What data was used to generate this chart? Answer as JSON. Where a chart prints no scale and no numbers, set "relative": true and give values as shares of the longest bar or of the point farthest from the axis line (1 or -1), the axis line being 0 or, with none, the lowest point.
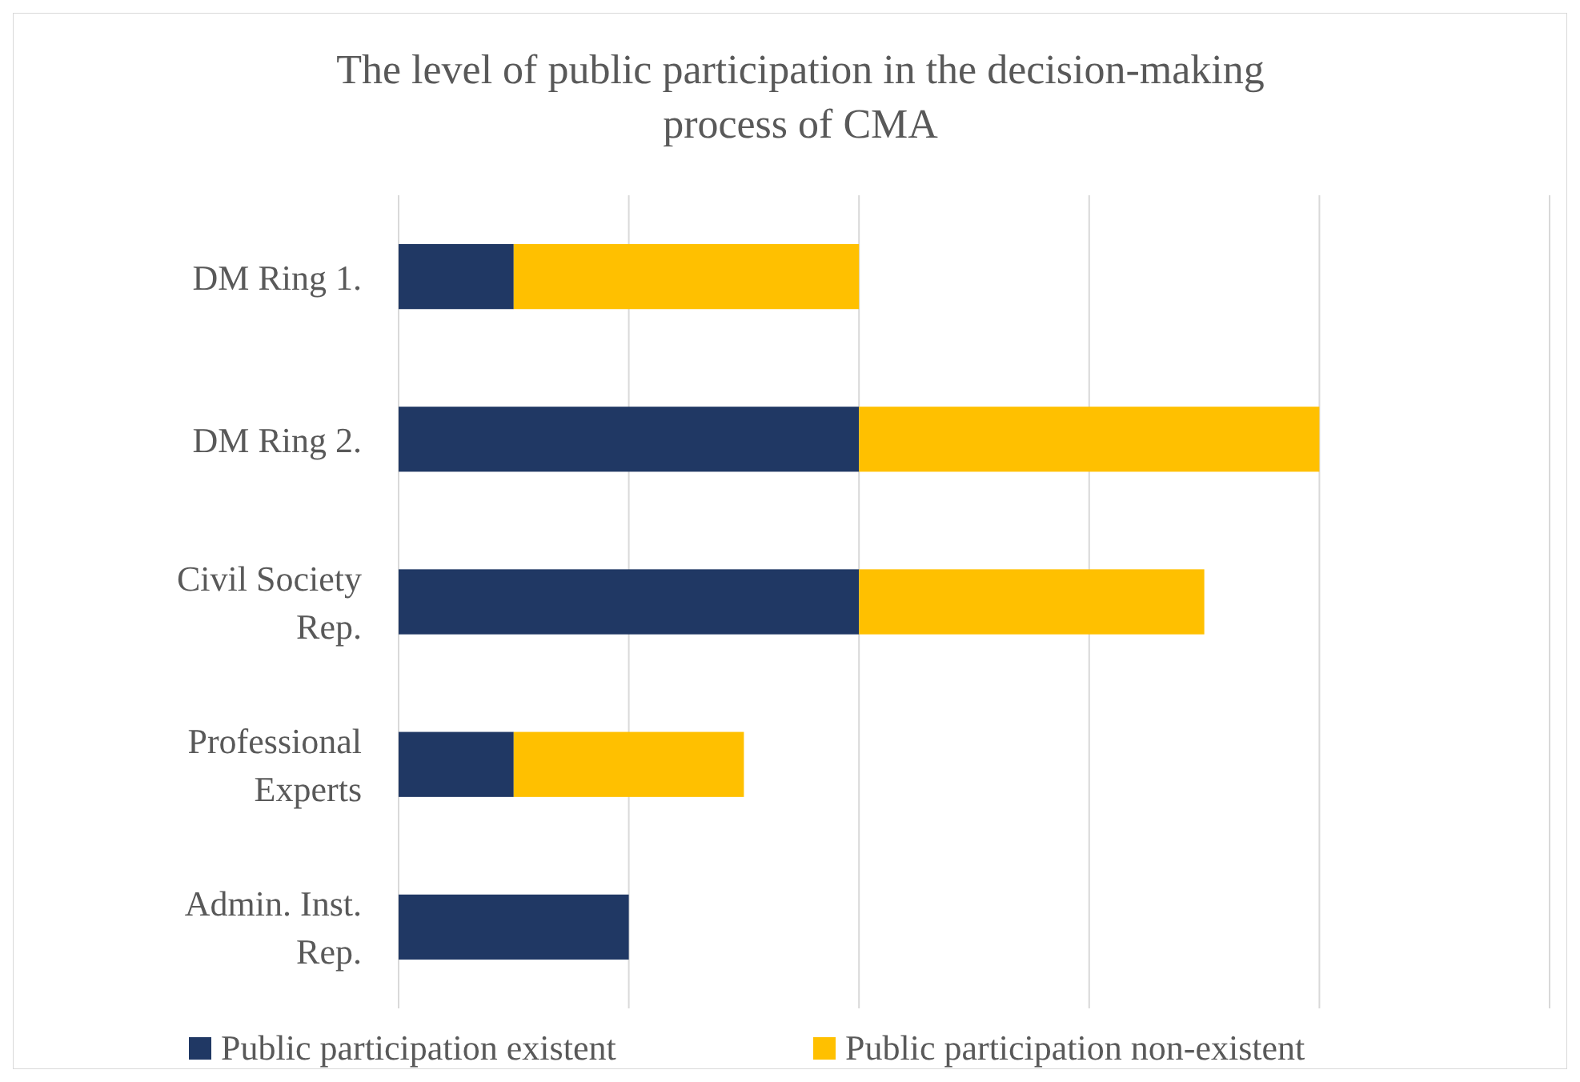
{
  "chart_data": {
    "type": "bar",
    "title": "The level of public participation in the decision-making process of CMA",
    "orientation": "horizontal",
    "stacked": true,
    "relative": true,
    "grid": true,
    "legend": "bottom",
    "categories": [
      "DM Ring 1.",
      "DM Ring 2.",
      "Civil Society Rep.",
      "Professional Experts",
      "Admin. Inst. Rep."
    ],
    "series": [
      {
        "name": "Public participation existent",
        "color": "#203864",
        "values": [
          0.125,
          0.5,
          0.5,
          0.125,
          0.25
        ]
      },
      {
        "name": "Public participation non-existent",
        "color": "#ffc000",
        "values": [
          0.375,
          0.5,
          0.375,
          0.25,
          0
        ]
      }
    ]
  }
}
